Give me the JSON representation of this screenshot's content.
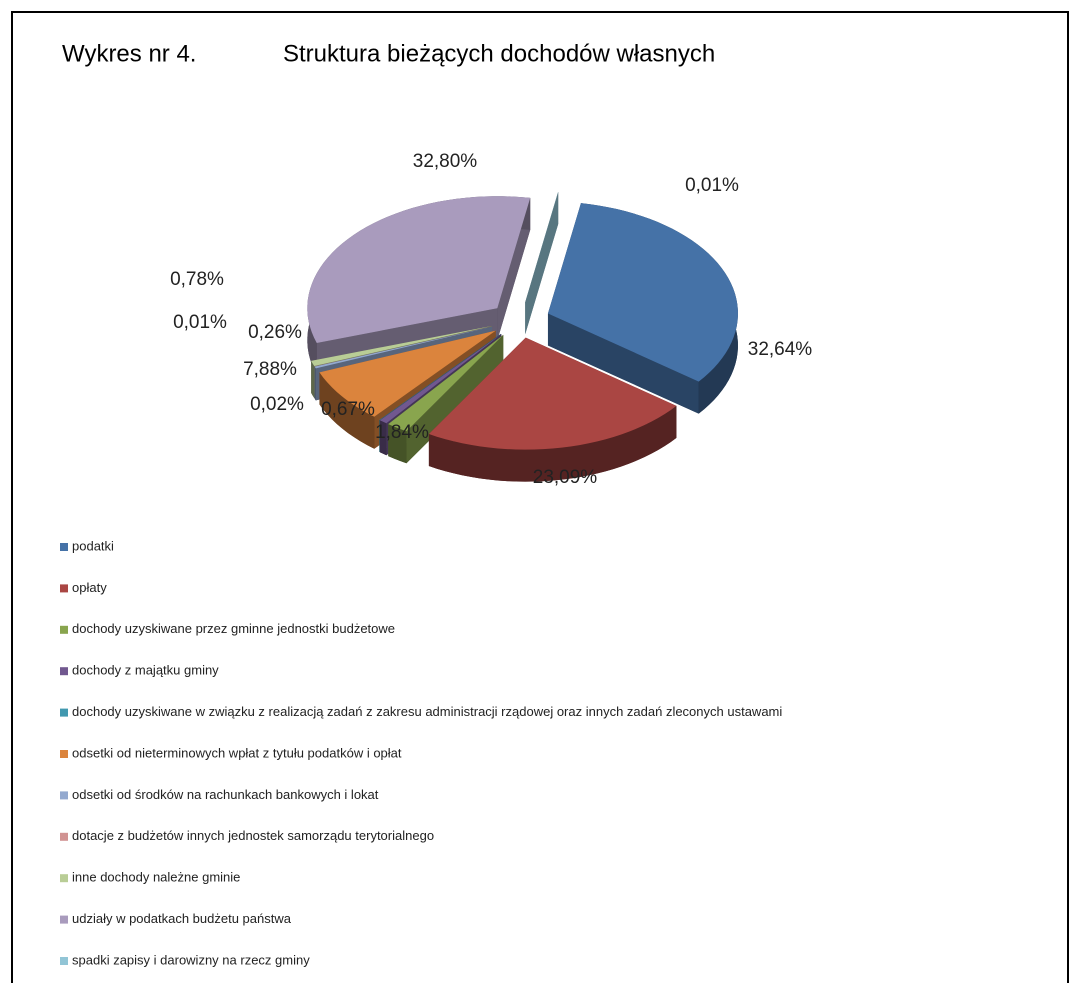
{
  "chart_data": {
    "type": "pie",
    "label": "Wykres nr 4.",
    "title": "Struktura bieżących dochodów  własnych",
    "categories": [
      "podatki",
      "opłaty",
      "dochody uzyskiwane przez gminne jednostki budżetowe",
      "dochody z majątku gminy",
      "dochody uzyskiwane w związku z realizacją zadań z zakresu administracji rządowej oraz innych zadań zleconych ustawami",
      "odsetki od nieterminowych wpłat  z tytułu podatków i opłat",
      "odsetki od środków na rachunkach bankowych i lokat",
      "dotacje z budżetów  innych jednostek samorządu terytorialnego",
      "inne dochody należne gminie",
      "udziały w podatkach budżetu państwa",
      "spadki zapisy i darowizny na rzecz gminy"
    ],
    "values": [
      32.64,
      23.09,
      1.84,
      0.67,
      0.02,
      7.88,
      0.26,
      0.01,
      0.78,
      32.8,
      0.01
    ],
    "value_labels": [
      "32,64%",
      "23,09%",
      "1,84%",
      "0,67%",
      "0,02%",
      "7,88%",
      "0,26%",
      "0,01%",
      "0,78%",
      "32,80%",
      "0,01%"
    ],
    "colors": [
      "#4572a7",
      "#aa4643",
      "#89a54e",
      "#71588f",
      "#4198af",
      "#db843d",
      "#93a9cf",
      "#d19392",
      "#b9cd96",
      "#a99bbd",
      "#92c5d6"
    ],
    "legend": "bottom"
  }
}
